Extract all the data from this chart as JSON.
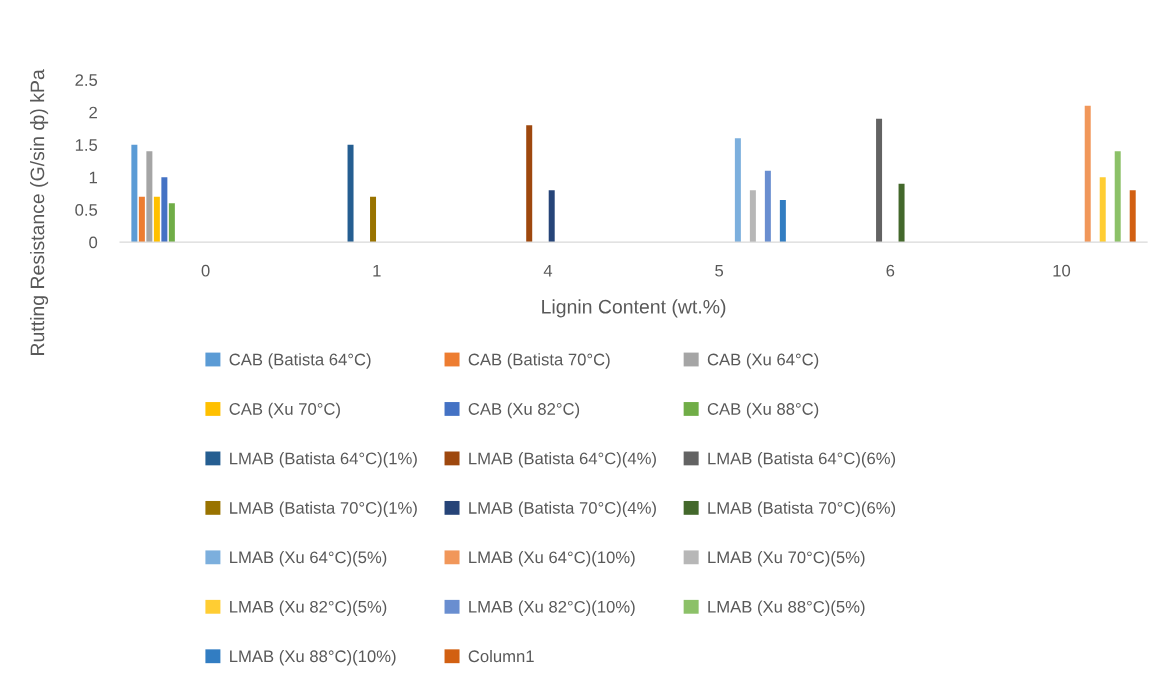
{
  "chart_data": {
    "type": "bar",
    "xlabel": "Lignin Content (wt.%)",
    "ylabel": "Rutting Resistance (G/sin ф) kPa",
    "categories": [
      "0",
      "1",
      "4",
      "5",
      "6",
      "10"
    ],
    "ylim": [
      0,
      2.5
    ],
    "yticks": [
      0,
      0.5,
      1,
      1.5,
      2,
      2.5
    ],
    "grid": false,
    "legend": "bottom",
    "series": [
      {
        "name": "CAB (Batista 64°C)",
        "color": "#5b9bd5",
        "values": [
          1.5,
          null,
          null,
          null,
          null,
          null
        ]
      },
      {
        "name": "CAB (Batista 70°C)",
        "color": "#ed7d31",
        "values": [
          0.7,
          null,
          null,
          null,
          null,
          null
        ]
      },
      {
        "name": "CAB (Xu 64°C)",
        "color": "#a5a5a5",
        "values": [
          1.4,
          null,
          null,
          null,
          null,
          null
        ]
      },
      {
        "name": "CAB (Xu 70°C)",
        "color": "#ffc000",
        "values": [
          0.7,
          null,
          null,
          null,
          null,
          null
        ]
      },
      {
        "name": "CAB (Xu 82°C)",
        "color": "#4472c4",
        "values": [
          1.0,
          null,
          null,
          null,
          null,
          null
        ]
      },
      {
        "name": "CAB (Xu 88°C)",
        "color": "#70ad47",
        "values": [
          0.6,
          null,
          null,
          null,
          null,
          null
        ]
      },
      {
        "name": "LMAB (Batista 64°C)(1%)",
        "color": "#255e91",
        "values": [
          null,
          1.5,
          null,
          null,
          null,
          null
        ]
      },
      {
        "name": "LMAB (Batista 64°C)(4%)",
        "color": "#9e480e",
        "values": [
          null,
          null,
          1.8,
          null,
          null,
          null
        ]
      },
      {
        "name": "LMAB (Batista 64°C)(6%)",
        "color": "#636363",
        "values": [
          null,
          null,
          null,
          null,
          1.9,
          null
        ]
      },
      {
        "name": "LMAB (Batista 70°C)(1%)",
        "color": "#997300",
        "values": [
          null,
          0.7,
          null,
          null,
          null,
          null
        ]
      },
      {
        "name": "LMAB (Batista 70°C)(4%)",
        "color": "#264478",
        "values": [
          null,
          null,
          0.8,
          null,
          null,
          null
        ]
      },
      {
        "name": "LMAB (Batista 70°C)(6%)",
        "color": "#43682b",
        "values": [
          null,
          null,
          null,
          null,
          0.9,
          null
        ]
      },
      {
        "name": "LMAB (Xu 64°C)(5%)",
        "color": "#7cafdd",
        "values": [
          null,
          null,
          null,
          1.6,
          null,
          null
        ]
      },
      {
        "name": "LMAB (Xu 64°C)(10%)",
        "color": "#f1975a",
        "values": [
          null,
          null,
          null,
          null,
          null,
          2.1
        ]
      },
      {
        "name": "LMAB (Xu 70°C)(5%)",
        "color": "#b7b7b7",
        "values": [
          null,
          null,
          null,
          0.8,
          null,
          null
        ]
      },
      {
        "name": "LMAB (Xu 82°C)(5%)",
        "color": "#ffcd33",
        "values": [
          null,
          null,
          null,
          null,
          null,
          1.0
        ]
      },
      {
        "name": "LMAB (Xu 82°C)(10%)",
        "color": "#698ed0",
        "values": [
          null,
          null,
          null,
          1.1,
          null,
          null
        ]
      },
      {
        "name": "LMAB (Xu 88°C)(5%)",
        "color": "#8cc168",
        "values": [
          null,
          null,
          null,
          null,
          null,
          1.4
        ]
      },
      {
        "name": "LMAB (Xu 88°C)(10%)",
        "color": "#327dc2",
        "values": [
          null,
          null,
          null,
          0.65,
          null,
          null
        ]
      },
      {
        "name": "Column1",
        "color": "#d26012",
        "values": [
          null,
          null,
          null,
          null,
          null,
          0.8
        ]
      }
    ]
  }
}
